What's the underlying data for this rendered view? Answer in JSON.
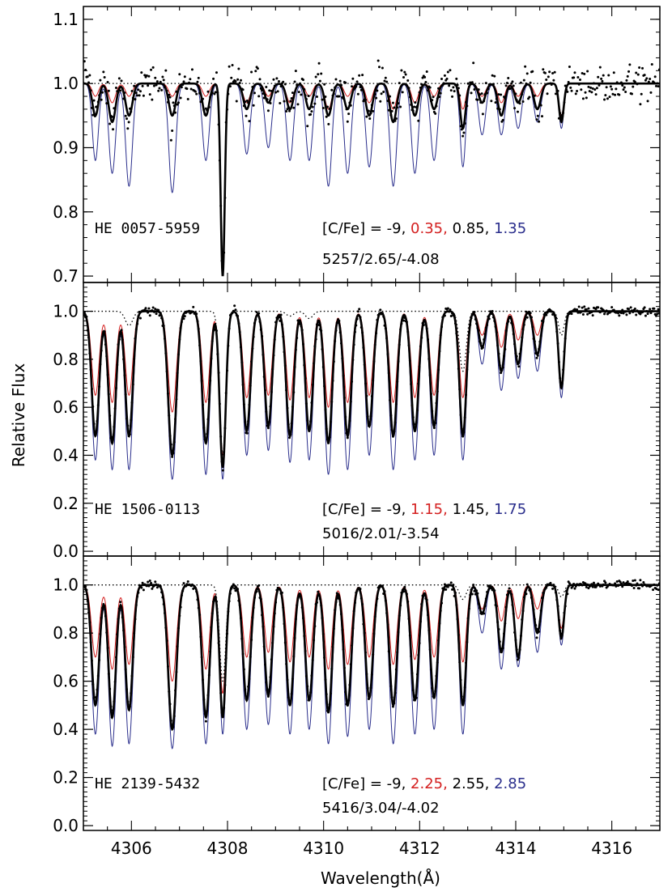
{
  "figure": {
    "xlabel": "Wavelength(Å)",
    "ylabel": "Relative Flux",
    "colors": {
      "observed": "#000000",
      "best_fit": "#000000",
      "low_carbon": "#d42020",
      "high_carbon": "#2a2e8c",
      "no_carbon": "#000000"
    }
  },
  "chart_data": [
    {
      "type": "line",
      "panel": "top",
      "star": "HE 0057-5959",
      "cfe_prefix": "[C/Fe] = -9, ",
      "cfe_low": "0.35,",
      "cfe_best": "0.85, ",
      "cfe_high": "1.35",
      "params": "5257/2.65/-4.08",
      "xlim": [
        4305,
        4317
      ],
      "ylim": [
        0.69,
        1.12
      ],
      "yticks": [
        "0.7",
        "0.8",
        "0.9",
        "1.0",
        "1.1"
      ],
      "ytick_values": [
        0.7,
        0.8,
        0.9,
        1.0,
        1.1
      ],
      "line_centers": [
        4305.25,
        4305.6,
        4305.95,
        4306.4,
        4306.85,
        4307.15,
        4307.55,
        4307.9,
        4308.4,
        4308.85,
        4309.3,
        4309.7,
        4310.1,
        4310.5,
        4310.95,
        4311.45,
        4311.9,
        4312.3,
        4312.9,
        4313.3,
        4313.7,
        4314.05,
        4314.45,
        4314.95
      ],
      "line_widths": [
        0.09,
        0.1,
        0.1,
        0.1,
        0.1,
        0.1,
        0.1,
        0.06,
        0.1,
        0.1,
        0.1,
        0.1,
        0.1,
        0.1,
        0.1,
        0.1,
        0.1,
        0.1,
        0.08,
        0.1,
        0.1,
        0.1,
        0.1,
        0.07
      ],
      "depth_low": [
        0.02,
        0.03,
        0.02,
        0.0,
        0.02,
        0.0,
        0.02,
        0.3,
        0.03,
        0.02,
        0.03,
        0.02,
        0.04,
        0.02,
        0.03,
        0.04,
        0.03,
        0.02,
        0.04,
        0.02,
        0.03,
        0.02,
        0.02,
        0.05
      ],
      "depth_best": [
        0.05,
        0.06,
        0.05,
        0.0,
        0.05,
        0.0,
        0.05,
        0.3,
        0.04,
        0.03,
        0.04,
        0.04,
        0.05,
        0.04,
        0.05,
        0.06,
        0.05,
        0.04,
        0.07,
        0.03,
        0.05,
        0.03,
        0.04,
        0.06
      ],
      "depth_high": [
        0.12,
        0.14,
        0.16,
        0.0,
        0.17,
        0.0,
        0.12,
        0.3,
        0.11,
        0.1,
        0.12,
        0.12,
        0.16,
        0.14,
        0.13,
        0.16,
        0.14,
        0.12,
        0.13,
        0.08,
        0.08,
        0.07,
        0.06,
        0.07
      ],
      "depth_none": [
        0,
        0,
        0,
        0,
        0,
        0,
        0,
        0.3,
        0,
        0,
        0,
        0,
        0,
        0,
        0,
        0,
        0,
        0,
        0,
        0,
        0,
        0,
        0,
        0.05
      ],
      "band_head": 4315.2,
      "band_head_strength": 0.0,
      "noise": 0.028
    },
    {
      "type": "line",
      "panel": "middle",
      "star": "HE 1506-0113",
      "cfe_prefix": "[C/Fe] = -9, ",
      "cfe_low": "1.15,",
      "cfe_best": "1.45, ",
      "cfe_high": "1.75",
      "params": "5016/2.01/-3.54",
      "xlim": [
        4305,
        4317
      ],
      "ylim": [
        -0.02,
        1.12
      ],
      "yticks": [
        "0.0",
        "0.2",
        "0.4",
        "0.6",
        "0.8",
        "1.0"
      ],
      "ytick_values": [
        0.0,
        0.2,
        0.4,
        0.6,
        0.8,
        1.0
      ],
      "line_centers": [
        4305.25,
        4305.6,
        4305.95,
        4306.4,
        4306.85,
        4307.15,
        4307.55,
        4307.9,
        4308.4,
        4308.85,
        4309.3,
        4309.7,
        4310.1,
        4310.5,
        4310.95,
        4311.45,
        4311.9,
        4312.3,
        4312.9,
        4313.3,
        4313.7,
        4314.05,
        4314.45,
        4314.95
      ],
      "line_widths": [
        0.11,
        0.11,
        0.11,
        0.11,
        0.12,
        0.11,
        0.11,
        0.09,
        0.11,
        0.11,
        0.11,
        0.11,
        0.11,
        0.11,
        0.11,
        0.11,
        0.11,
        0.11,
        0.1,
        0.1,
        0.1,
        0.1,
        0.1,
        0.08
      ],
      "depth_low": [
        0.35,
        0.38,
        0.35,
        0.0,
        0.42,
        0.0,
        0.38,
        0.6,
        0.36,
        0.35,
        0.37,
        0.36,
        0.4,
        0.38,
        0.35,
        0.38,
        0.36,
        0.35,
        0.36,
        0.1,
        0.15,
        0.12,
        0.1,
        0.3
      ],
      "depth_best": [
        0.52,
        0.55,
        0.52,
        0.0,
        0.6,
        0.0,
        0.55,
        0.65,
        0.5,
        0.48,
        0.52,
        0.5,
        0.55,
        0.52,
        0.48,
        0.52,
        0.5,
        0.48,
        0.52,
        0.15,
        0.25,
        0.22,
        0.18,
        0.32
      ],
      "depth_high": [
        0.62,
        0.66,
        0.66,
        0.0,
        0.7,
        0.0,
        0.68,
        0.7,
        0.6,
        0.58,
        0.63,
        0.62,
        0.68,
        0.66,
        0.6,
        0.66,
        0.62,
        0.6,
        0.62,
        0.22,
        0.33,
        0.28,
        0.25,
        0.36
      ],
      "depth_none": [
        0,
        0,
        0.06,
        0,
        0,
        0,
        0,
        0.6,
        0,
        0,
        0.02,
        0.03,
        0,
        0,
        0,
        0,
        0,
        0,
        0.25,
        0,
        0,
        0,
        0,
        0.1
      ],
      "band_head": 4315.2,
      "band_head_strength": 0.0,
      "noise": 0.02
    },
    {
      "type": "line",
      "panel": "bottom",
      "star": "HE 2139-5432",
      "cfe_prefix": "[C/Fe] = -9, ",
      "cfe_low": "2.25,",
      "cfe_best": "2.55, ",
      "cfe_high": "2.85",
      "params": "5416/3.04/-4.02",
      "xlim": [
        4305,
        4317
      ],
      "ylim": [
        -0.02,
        1.12
      ],
      "yticks": [
        "0.0",
        "0.2",
        "0.4",
        "0.6",
        "0.8",
        "1.0"
      ],
      "ytick_values": [
        0.0,
        0.2,
        0.4,
        0.6,
        0.8,
        1.0
      ],
      "xticks": [
        "4306",
        "4308",
        "4310",
        "4312",
        "4314",
        "4316"
      ],
      "xtick_values": [
        4306,
        4308,
        4310,
        4312,
        4314,
        4316
      ],
      "line_centers": [
        4305.25,
        4305.6,
        4305.95,
        4306.4,
        4306.85,
        4307.15,
        4307.55,
        4307.9,
        4308.4,
        4308.85,
        4309.3,
        4309.7,
        4310.1,
        4310.5,
        4310.95,
        4311.45,
        4311.9,
        4312.3,
        4312.9,
        4313.3,
        4313.7,
        4314.05,
        4314.45,
        4314.95
      ],
      "line_widths": [
        0.11,
        0.11,
        0.11,
        0.11,
        0.12,
        0.11,
        0.11,
        0.09,
        0.11,
        0.11,
        0.11,
        0.11,
        0.11,
        0.11,
        0.11,
        0.11,
        0.11,
        0.11,
        0.1,
        0.1,
        0.1,
        0.1,
        0.1,
        0.08
      ],
      "depth_low": [
        0.3,
        0.35,
        0.33,
        0.0,
        0.4,
        0.0,
        0.35,
        0.45,
        0.3,
        0.28,
        0.32,
        0.3,
        0.35,
        0.33,
        0.3,
        0.33,
        0.31,
        0.3,
        0.32,
        0.1,
        0.15,
        0.14,
        0.1,
        0.18
      ],
      "depth_best": [
        0.5,
        0.55,
        0.52,
        0.0,
        0.6,
        0.0,
        0.55,
        0.55,
        0.48,
        0.46,
        0.5,
        0.48,
        0.53,
        0.5,
        0.47,
        0.5,
        0.48,
        0.47,
        0.5,
        0.12,
        0.28,
        0.3,
        0.2,
        0.22
      ],
      "depth_high": [
        0.62,
        0.67,
        0.66,
        0.0,
        0.68,
        0.0,
        0.66,
        0.62,
        0.6,
        0.58,
        0.62,
        0.6,
        0.66,
        0.63,
        0.6,
        0.66,
        0.62,
        0.6,
        0.62,
        0.2,
        0.35,
        0.34,
        0.28,
        0.25
      ],
      "depth_none": [
        0,
        0,
        0,
        0,
        0,
        0,
        0,
        0.4,
        0,
        0,
        0,
        0,
        0,
        0,
        0,
        0,
        0,
        0,
        0.06,
        0,
        0,
        0,
        0,
        0.05
      ],
      "band_head": 4315.2,
      "band_head_strength": 0.0,
      "noise": 0.02
    }
  ]
}
